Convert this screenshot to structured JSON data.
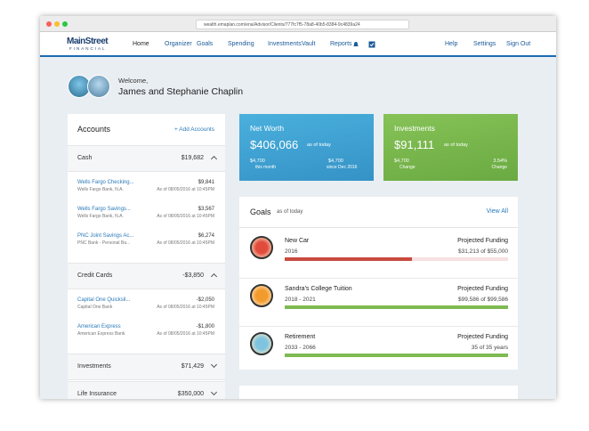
{
  "browser": {
    "url": "wealth.emaplan.com/ena/Advisor/Clients/777fc7f5-78a8-40b5-8384-9c4839a24"
  },
  "nav": {
    "logo_main": "MainStreet",
    "logo_sub": "FINANCIAL",
    "items": [
      "Home",
      "Organizer",
      "Goals",
      "Spending",
      "Investments",
      "Vault",
      "Reports"
    ],
    "right": [
      "Help",
      "Settings",
      "Sign Out"
    ]
  },
  "welcome": {
    "greeting": "Welcome,",
    "name": "James and Stephanie Chaplin"
  },
  "accounts": {
    "title": "Accounts",
    "add": "+ Add Accounts",
    "groups": [
      {
        "name": "Cash",
        "total": "$19,682",
        "expanded": true,
        "accounts": [
          {
            "name": "Wells Fargo Checking...",
            "amount": "$9,841",
            "institution": "Wells Fargo Bank, N.A.",
            "as_of": "As of 08/05/2016 at 10:45PM"
          },
          {
            "name": "Wells Fargo Savings...",
            "amount": "$3,567",
            "institution": "Wells Fargo Bank, N.A.",
            "as_of": "As of 08/05/2016 at 10:45PM"
          },
          {
            "name": "PNC Joint Savings Ac...",
            "amount": "$6,274",
            "institution": "PNC Bank - Personal Ba...",
            "as_of": "As of 08/05/2016 at 10:45PM"
          }
        ]
      },
      {
        "name": "Credit Cards",
        "total": "-$3,850",
        "expanded": true,
        "accounts": [
          {
            "name": "Capital One Quicksil...",
            "amount": "-$2,050",
            "institution": "Capital One Bank",
            "as_of": "As of 08/05/2016 at 10:45PM"
          },
          {
            "name": "American Express",
            "amount": "-$1,800",
            "institution": "American Express Bank",
            "as_of": "As of 08/05/2016 at 10:45PM"
          }
        ]
      },
      {
        "name": "Investments",
        "total": "$71,429",
        "expanded": false,
        "accounts": []
      },
      {
        "name": "Life Insurance",
        "total": "$350,000",
        "expanded": false,
        "accounts": []
      }
    ]
  },
  "net_worth": {
    "title": "Net Worth",
    "value": "$406,066",
    "as_of": "as of today",
    "changes": [
      {
        "value": "$4,700",
        "label": "this month"
      },
      {
        "value": "$4,700",
        "label": "since Dec 2016"
      }
    ]
  },
  "investments": {
    "title": "Investments",
    "value": "$91,111",
    "as_of": "as of today",
    "changes": [
      {
        "value": "$4,700",
        "label": "Change"
      },
      {
        "value": "3.54%",
        "label": "Change"
      }
    ]
  },
  "goals": {
    "title": "Goals",
    "as_of": "as of today",
    "view_all": "View All",
    "items": [
      {
        "name": "New Car",
        "years": "2016",
        "funding_label": "Projected Funding",
        "funding": "$31,213 of $55,000"
      },
      {
        "name": "Sandra's College Tuition",
        "years": "2018 - 2021",
        "funding_label": "Projected Funding",
        "funding": "$99,586 of $99,586"
      },
      {
        "name": "Retirement",
        "years": "2033 - 2066",
        "funding_label": "Projected Funding",
        "funding": "35 of 35 years"
      }
    ]
  }
}
